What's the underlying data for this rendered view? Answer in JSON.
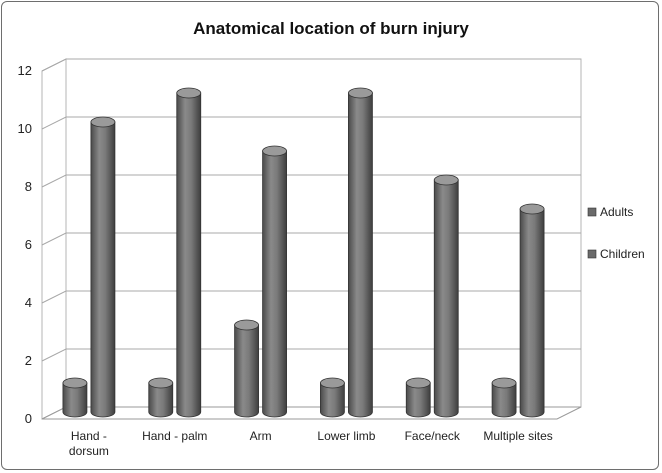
{
  "chart_data": {
    "type": "bar",
    "title": "Anatomical location of burn injury",
    "categories": [
      [
        "Hand -",
        "dorsum"
      ],
      [
        "Hand - palm"
      ],
      [
        "Arm"
      ],
      [
        "Lower limb"
      ],
      [
        "Face/neck"
      ],
      [
        "Multiple sites"
      ]
    ],
    "series": [
      {
        "name": "Adults",
        "values": [
          1,
          1,
          3,
          1,
          1,
          1
        ],
        "color": "#6a6a6a"
      },
      {
        "name": "Children",
        "values": [
          10,
          11,
          9,
          11,
          8,
          7
        ],
        "color": "#6a6a6a"
      }
    ],
    "ylim": [
      0,
      12
    ],
    "yticks": [
      "0",
      "2",
      "4",
      "6",
      "8",
      "10",
      "12"
    ],
    "grid": true,
    "legend_position": "right",
    "style": "3d-cylinder"
  }
}
